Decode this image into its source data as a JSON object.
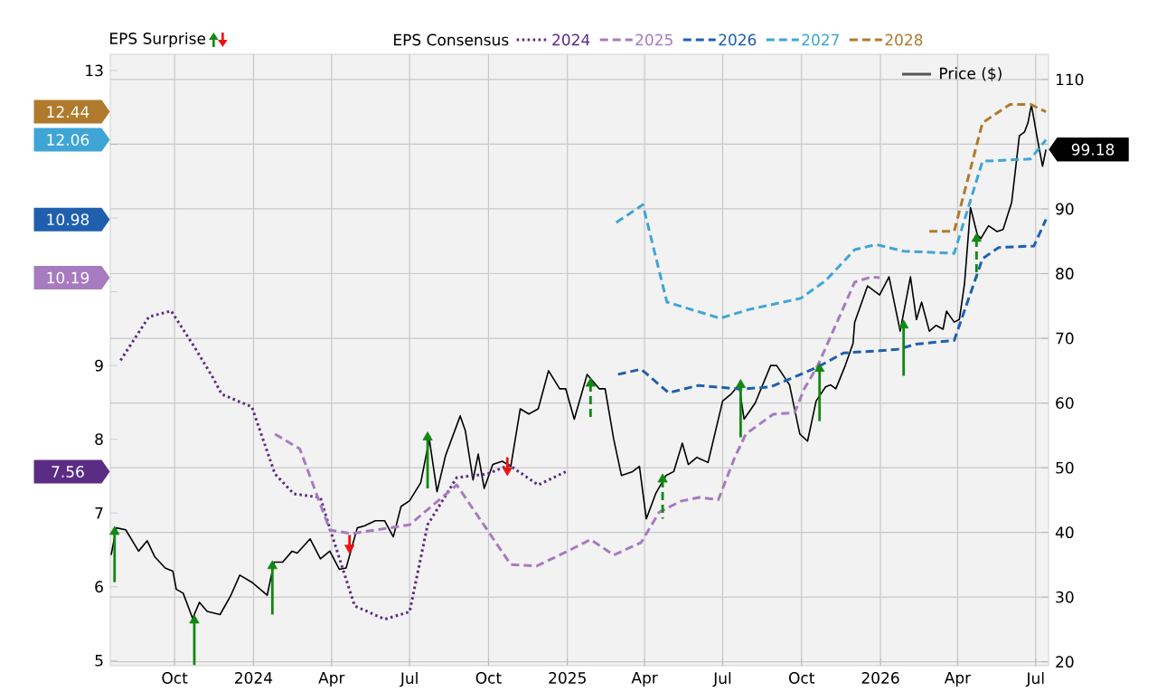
{
  "chart_data": {
    "type": "line",
    "annotations": [
      "EPS Surprise",
      "7.56",
      "10.19",
      "10.98",
      "12.06",
      "12.44"
    ],
    "legend_title": "EPS Consensus",
    "legend": "top",
    "grid": true,
    "xlim": [
      "2023-07-18",
      "2026-07-16"
    ],
    "xticks": [
      {
        "value": "2023-10-01",
        "label": "Oct"
      },
      {
        "value": "2024-01-01",
        "label": "2024"
      },
      {
        "value": "2024-04-01",
        "label": "Apr"
      },
      {
        "value": "2024-07-01",
        "label": "Jul"
      },
      {
        "value": "2024-10-01",
        "label": "Oct"
      },
      {
        "value": "2025-01-01",
        "label": "2025"
      },
      {
        "value": "2025-04-01",
        "label": "Apr"
      },
      {
        "value": "2025-07-01",
        "label": "Jul"
      },
      {
        "value": "2025-10-01",
        "label": "Oct"
      },
      {
        "value": "2026-01-01",
        "label": "2026"
      },
      {
        "value": "2026-04-01",
        "label": "Apr"
      },
      {
        "value": "2026-07-01",
        "label": "Jul"
      }
    ],
    "ylim": [
      4.93,
      13.22
    ],
    "yticks": [
      5,
      6,
      7,
      8,
      9,
      {
        "value": 10,
        "label": null
      },
      {
        "value": 11,
        "label": null
      },
      {
        "value": 12,
        "label": null
      },
      13
    ],
    "y2lim": [
      19.4,
      113.9
    ],
    "y2ticks": [
      20,
      30,
      40,
      50,
      60,
      70,
      80,
      90,
      {
        "value": 100,
        "label": null
      },
      110
    ],
    "series": [
      {
        "name": "Price ($)",
        "axis": "y2",
        "color": "#000000",
        "line_style": "solid",
        "x": [
          "2023-07-19",
          "2023-07-25",
          "2023-08-05",
          "2023-08-20",
          "2023-08-30",
          "2023-09-08",
          "2023-09-20",
          "2023-09-29",
          "2023-10-03",
          "2023-10-11",
          "2023-10-22",
          "2023-10-30",
          "2023-11-08",
          "2023-11-23",
          "2023-12-05",
          "2023-12-16",
          "2023-12-30",
          "2024-01-17",
          "2024-01-25",
          "2024-02-04",
          "2024-02-15",
          "2024-02-21",
          "2024-03-07",
          "2024-03-19",
          "2024-03-30",
          "2024-04-10",
          "2024-04-18",
          "2024-05-01",
          "2024-05-09",
          "2024-05-22",
          "2024-06-02",
          "2024-06-12",
          "2024-06-21",
          "2024-07-01",
          "2024-07-14",
          "2024-07-24",
          "2024-08-02",
          "2024-08-12",
          "2024-08-29",
          "2024-09-04",
          "2024-09-13",
          "2024-09-19",
          "2024-09-26",
          "2024-10-06",
          "2024-10-17",
          "2024-10-27",
          "2024-11-07",
          "2024-11-17",
          "2024-11-28",
          "2024-12-10",
          "2024-12-23",
          "2024-12-30",
          "2025-01-09",
          "2025-01-24",
          "2025-02-07",
          "2025-02-14",
          "2025-02-24",
          "2025-03-05",
          "2025-03-18",
          "2025-03-26",
          "2025-04-03",
          "2025-04-14",
          "2025-04-26",
          "2025-05-05",
          "2025-05-15",
          "2025-05-22",
          "2025-06-01",
          "2025-06-14",
          "2025-07-01",
          "2025-07-11",
          "2025-07-20",
          "2025-07-26",
          "2025-08-08",
          "2025-08-26",
          "2025-09-02",
          "2025-09-17",
          "2025-09-29",
          "2025-10-08",
          "2025-10-18",
          "2025-10-29",
          "2025-11-04",
          "2025-11-10",
          "2025-11-21",
          "2025-11-30",
          "2025-12-02",
          "2025-12-17",
          "2025-12-31",
          "2026-01-11",
          "2026-01-24",
          "2026-02-05",
          "2026-02-12",
          "2026-02-18",
          "2026-02-27",
          "2026-03-07",
          "2026-03-15",
          "2026-03-19",
          "2026-03-28",
          "2026-04-03",
          "2026-04-09",
          "2026-04-16",
          "2026-04-24",
          "2026-04-28",
          "2026-05-07",
          "2026-05-17",
          "2026-05-24",
          "2026-06-03",
          "2026-06-12",
          "2026-06-18",
          "2026-06-22",
          "2026-06-26",
          "2026-07-03",
          "2026-07-09",
          "2026-07-13"
        ],
        "values": [
          36.5,
          40.7,
          40.4,
          37.1,
          38.7,
          36.2,
          34.5,
          34.0,
          31.2,
          30.6,
          26.7,
          29.2,
          27.8,
          27.3,
          30.1,
          33.4,
          32.3,
          30.3,
          35.4,
          35.4,
          37.1,
          36.8,
          39.0,
          35.9,
          37.1,
          34.3,
          34.5,
          40.7,
          41.0,
          41.8,
          41.8,
          39.3,
          44.0,
          44.9,
          47.7,
          54.4,
          46.3,
          51.9,
          58.0,
          55.7,
          48.1,
          52.1,
          46.8,
          50.5,
          51.0,
          50.2,
          59.1,
          58.3,
          59.1,
          65.0,
          62.2,
          62.2,
          57.5,
          64.4,
          62.2,
          62.2,
          54.4,
          48.8,
          49.4,
          50.2,
          42.1,
          46.0,
          48.8,
          49.4,
          53.8,
          50.5,
          51.6,
          50.8,
          60.3,
          61.4,
          62.8,
          57.5,
          60.0,
          65.8,
          65.8,
          62.8,
          55.2,
          54.1,
          60.3,
          62.5,
          62.8,
          62.2,
          65.8,
          69.2,
          72.5,
          78.1,
          76.7,
          79.5,
          71.1,
          79.5,
          72.9,
          75.6,
          71.1,
          72.0,
          71.4,
          74.2,
          72.5,
          72.9,
          78.4,
          90.2,
          86.0,
          85.4,
          87.4,
          86.5,
          86.8,
          91.0,
          101.3,
          101.9,
          103.3,
          106.1,
          100.8,
          96.6,
          99.18
        ],
        "value_labels": [
          null,
          null,
          null,
          null,
          null,
          null,
          null,
          null,
          null,
          null,
          null,
          null,
          null,
          null,
          null,
          null,
          null,
          null,
          null,
          null,
          null,
          null,
          null,
          null,
          null,
          null,
          null,
          null,
          null,
          null,
          null,
          null,
          null,
          null,
          null,
          null,
          null,
          null,
          null,
          null,
          null,
          null,
          null,
          null,
          null,
          null,
          null,
          null,
          null,
          null,
          null,
          null,
          null,
          null,
          null,
          null,
          null,
          null,
          null,
          null,
          null,
          null,
          null,
          null,
          null,
          null,
          null,
          null,
          null,
          null,
          null,
          null,
          null,
          null,
          null,
          null,
          null,
          null,
          null,
          null,
          null,
          null,
          null,
          null,
          null,
          null,
          null,
          null,
          null,
          null,
          null,
          null,
          null,
          null,
          null,
          null,
          null,
          null,
          null,
          null,
          null,
          null,
          null,
          null,
          null,
          null,
          null,
          null,
          null,
          null,
          null,
          null,
          "99.18"
        ]
      },
      {
        "name": "2024",
        "color": "#5b2c83",
        "line_style": "dotted",
        "x": [
          "2023-07-30",
          "2023-09-01",
          "2023-09-27",
          "2023-10-22",
          "2023-11-14",
          "2023-11-25",
          "2023-12-30",
          "2024-01-26",
          "2024-02-17",
          "2024-03-19",
          "2024-03-30",
          "2024-04-28",
          "2024-06-02",
          "2024-07-01",
          "2024-07-22",
          "2024-08-25",
          "2024-09-30",
          "2024-10-25",
          "2024-11-28",
          "2024-12-30"
        ],
        "values": [
          9.07,
          9.66,
          9.74,
          9.29,
          8.85,
          8.61,
          8.44,
          7.53,
          7.26,
          7.21,
          6.79,
          5.74,
          5.56,
          5.66,
          6.84,
          7.48,
          7.53,
          7.65,
          7.38,
          7.56
        ]
      },
      {
        "name": "2025",
        "color": "#a77bbf",
        "line_style": "dashed",
        "x": [
          "2024-01-26",
          "2024-02-24",
          "2024-03-30",
          "2024-04-24",
          "2024-07-01",
          "2024-08-25",
          "2024-10-27",
          "2024-11-26",
          "2024-12-30",
          "2025-01-28",
          "2025-02-24",
          "2025-03-28",
          "2025-04-18",
          "2025-05-13",
          "2025-06-03",
          "2025-06-26",
          "2025-07-15",
          "2025-07-28",
          "2025-08-29",
          "2025-09-23",
          "2025-10-04",
          "2025-10-20",
          "2025-12-02",
          "2025-12-21",
          "2025-12-31"
        ],
        "values": [
          8.07,
          7.87,
          6.77,
          6.72,
          6.84,
          7.38,
          6.3,
          6.28,
          6.47,
          6.64,
          6.43,
          6.6,
          7.01,
          7.16,
          7.21,
          7.18,
          7.75,
          8.07,
          8.34,
          8.36,
          8.68,
          9.0,
          10.13,
          10.2,
          10.19
        ]
      },
      {
        "name": "2026",
        "color": "#1f5fae",
        "line_style": "dashed",
        "x": [
          "2025-03-01",
          "2025-03-28",
          "2025-04-29",
          "2025-06-03",
          "2025-07-22",
          "2025-08-26",
          "2025-09-30",
          "2025-10-20",
          "2025-11-19",
          "2025-12-31",
          "2026-01-21",
          "2026-02-12",
          "2026-03-28",
          "2026-04-30",
          "2026-05-19",
          "2026-06-29",
          "2026-07-13"
        ],
        "values": [
          8.88,
          8.95,
          8.63,
          8.73,
          8.68,
          8.71,
          8.88,
          8.98,
          9.17,
          9.2,
          9.22,
          9.29,
          9.34,
          10.45,
          10.6,
          10.62,
          10.98
        ]
      },
      {
        "name": "2027",
        "color": "#3fa5d6",
        "line_style": "dashed",
        "x": [
          "2025-02-27",
          "2025-03-30",
          "2025-04-27",
          "2025-06-28",
          "2025-08-01",
          "2025-09-30",
          "2025-10-29",
          "2025-12-02",
          "2025-12-27",
          "2026-01-28",
          "2026-03-28",
          "2026-04-30",
          "2026-06-25",
          "2026-07-13"
        ],
        "values": [
          10.94,
          11.18,
          9.86,
          9.64,
          9.76,
          9.91,
          10.15,
          10.57,
          10.64,
          10.55,
          10.52,
          11.77,
          11.8,
          12.06
        ]
      },
      {
        "name": "2028",
        "color": "#b07a2c",
        "line_style": "dashed",
        "x": [
          "2026-02-27",
          "2026-03-28",
          "2026-04-30",
          "2026-06-01",
          "2026-06-25",
          "2026-07-13"
        ],
        "values": [
          10.82,
          10.82,
          12.29,
          12.54,
          12.54,
          12.44
        ]
      },
      {
        "type": "scatter",
        "axis": "y2",
        "color": "#118811",
        "marker": "triangle",
        "line_style": "solid",
        "x": [
          "2023-07-23",
          "2023-10-24",
          "2024-01-23",
          "2024-07-22",
          "2025-07-22",
          "2025-10-22",
          "2026-01-28"
        ],
        "values": [
          40.1,
          26.4,
          34.8,
          54.7,
          62.8,
          65.3,
          72.0
        ],
        "errors": [
          [
            32.3,
            40.1
          ],
          [
            19.5,
            26.4
          ],
          [
            27.3,
            34.8
          ],
          [
            46.8,
            54.7
          ],
          [
            54.7,
            62.8
          ],
          [
            57.2,
            65.3
          ],
          [
            64.2,
            72.0
          ]
        ]
      },
      {
        "type": "scatter",
        "axis": "y2",
        "color": "#ee1111",
        "marker": "triangle",
        "line_style": "solid",
        "x": [
          "2024-04-22",
          "2024-10-23"
        ],
        "values": [
          37.6,
          49.6
        ],
        "errors": [
          [
            37.6,
            39.6
          ],
          [
            49.6,
            51.6
          ]
        ]
      },
      {
        "type": "scatter",
        "axis": "y2",
        "color": "#118811",
        "marker": "triangle",
        "line_style": "dashed",
        "x": [
          "2025-01-28",
          "2025-04-22",
          "2026-04-23"
        ],
        "values": [
          63.0,
          48.2,
          85.4
        ],
        "errors": [
          [
            57.5,
            63.0
          ],
          [
            42.1,
            48.2
          ],
          [
            79.3,
            85.4
          ]
        ]
      }
    ]
  }
}
